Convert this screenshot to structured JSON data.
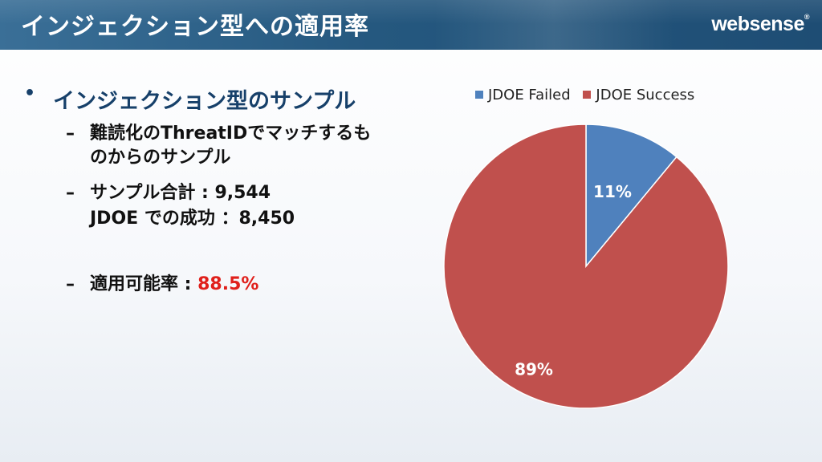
{
  "title": "インジェクション型への適用率",
  "logo": "websense",
  "logo_reg": "®",
  "bullets": {
    "main": "インジェクション型のサンプル",
    "sub1_line1": "難読化のThreatIDでマッチするも",
    "sub1_line2": "のからのサンプル",
    "sub2_line1": "サンプル合計 : 9,544",
    "sub2_line2": "JDOE での成功 ：8,450",
    "sub3_label": "適用可能率 : ",
    "sub3_value": "88.5%"
  },
  "chart_data": {
    "type": "pie",
    "series": [
      {
        "name": "JDOE Failed",
        "value": 11,
        "label": "11%",
        "color": "#4f81bd"
      },
      {
        "name": "JDOE Success",
        "value": 89,
        "label": "89%",
        "color": "#c0504d"
      }
    ],
    "legend": "top"
  }
}
